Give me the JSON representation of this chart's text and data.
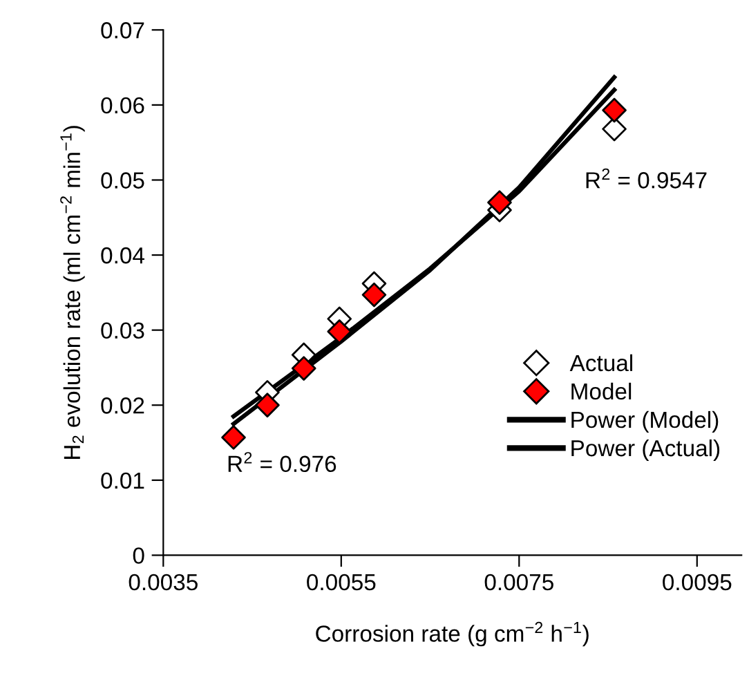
{
  "chart_data": {
    "type": "scatter",
    "xlabel": "Corrosion rate (g cm$^{−2}$ h$^{−1}$)",
    "ylabel": "H$_{2}$ evolution rate (ml cm$^{−2}$ min$^{−1}$)",
    "x": [
      0.00429,
      0.00467,
      0.00508,
      0.00548,
      0.00587,
      0.00728,
      0.00857
    ],
    "series": [
      {
        "name": "Actual",
        "color": "#ffffff",
        "marker": "diamond",
        "values": [
          null,
          0.0217,
          0.0267,
          0.0315,
          0.0362,
          0.046,
          0.0568
        ]
      },
      {
        "name": "Model",
        "color": "#ff0000",
        "marker": "diamond",
        "values": [
          0.0157,
          0.02,
          0.0249,
          0.0298,
          0.0347,
          0.047,
          0.0593
        ]
      },
      {
        "name": "Power (Model)",
        "type": "line",
        "color": "#000000",
        "marker": "none",
        "x": [
          0.00429,
          0.0055,
          0.0065,
          0.0075,
          0.00857
        ],
        "values": [
          0.0175,
          0.0285,
          0.038,
          0.049,
          0.0637
        ]
      },
      {
        "name": "Power (Actual)",
        "type": "line",
        "color": "#000000",
        "marker": "none",
        "x": [
          0.00429,
          0.0055,
          0.0065,
          0.0075,
          0.00857
        ],
        "values": [
          0.0185,
          0.029,
          0.0382,
          0.0485,
          0.062
        ]
      }
    ],
    "xlim": [
      0.0035,
      0.01
    ],
    "xticks": [
      0.0035,
      0.0055,
      0.0075,
      0.0095
    ],
    "ylim": [
      0,
      0.07
    ],
    "yticks": [
      0,
      0.01,
      0.02,
      0.03,
      0.04,
      0.05,
      0.06,
      0.07
    ],
    "annotations": [
      "R$^{2}$ = 0.976",
      "R$^{2}$ = 0.9547"
    ],
    "legend": "bottom right",
    "grid": false
  }
}
